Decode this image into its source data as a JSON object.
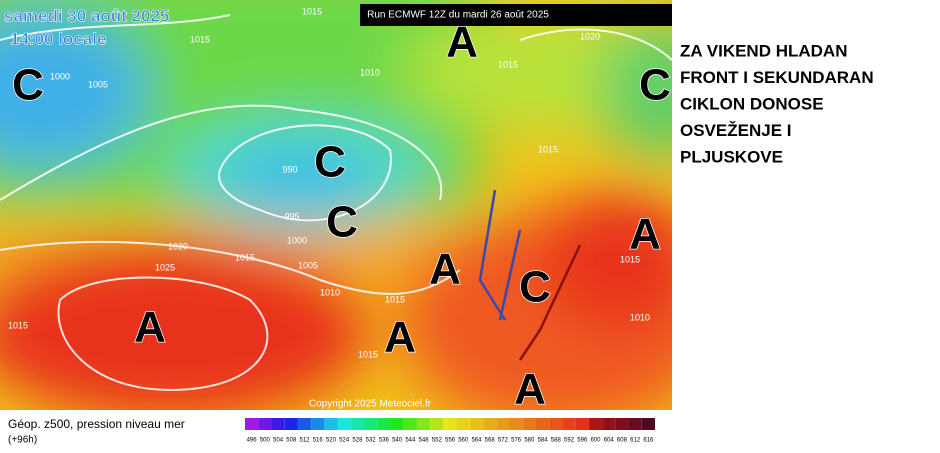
{
  "header": {
    "date": "samedi 30 août 2025",
    "time": "14:00 locale",
    "run": "Run ECMWF 12Z du mardi 26 août 2025"
  },
  "headline": [
    "ZA VIKEND HLADAN",
    "FRONT I SEKUNDARAN",
    "CIKLON DONOSE",
    "OSVEŽENJE I",
    "PLJUSKOVE"
  ],
  "pressure_labels": [
    "1015",
    "1015",
    "1000",
    "1005",
    "1010",
    "1015",
    "1020",
    "990",
    "995",
    "1000",
    "1005",
    "1020",
    "1015",
    "1025",
    "1010",
    "1015",
    "1015",
    "1015",
    "1015",
    "1015",
    "1010"
  ],
  "systems": [
    "A",
    "C",
    "C",
    "C",
    "C",
    "A",
    "C",
    "A",
    "A",
    "A",
    "A"
  ],
  "copyright": "Copyright 2025 Meteociel.fr",
  "caption": {
    "title": "Géop. z500, pression niveau mer",
    "step": "(+96h)"
  },
  "legend": [
    "496",
    "500",
    "504",
    "508",
    "512",
    "516",
    "520",
    "524",
    "528",
    "532",
    "536",
    "540",
    "544",
    "548",
    "552",
    "556",
    "560",
    "564",
    "568",
    "572",
    "576",
    "580",
    "584",
    "588",
    "592",
    "596",
    "600",
    "604",
    "608",
    "612",
    "616"
  ]
}
